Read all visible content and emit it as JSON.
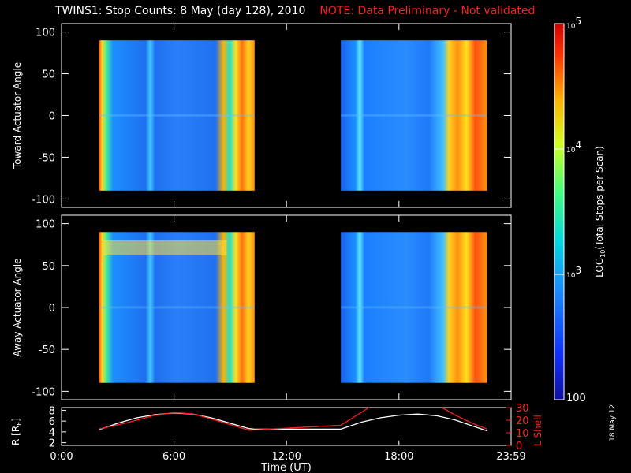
{
  "title": {
    "main": "TWINS1: Stop Counts:  8 May (day 128), 2010",
    "note": "NOTE: Data Preliminary - Not validated"
  },
  "date_stamp": "18 May 12",
  "colors": {
    "background": "#000000",
    "note": "#ff2020",
    "r_line": "#ffffff",
    "lshell_line": "#ff2020"
  },
  "chart_data": [
    {
      "type": "heatmap",
      "ylabel": "Toward Actuator Angle",
      "ylim": [
        -110,
        110
      ],
      "yticks": [
        -100,
        -50,
        0,
        50,
        100
      ],
      "x_segments_hours": [
        [
          2.0,
          10.3
        ],
        [
          14.9,
          22.7
        ]
      ]
    },
    {
      "type": "heatmap",
      "ylabel": "Away Actuator Angle",
      "ylim": [
        -110,
        110
      ],
      "yticks": [
        -100,
        -50,
        0,
        50,
        100
      ],
      "x_segments_hours": [
        [
          2.0,
          10.3
        ],
        [
          14.9,
          22.7
        ]
      ]
    },
    {
      "type": "line",
      "xlabel": "Time (UT)",
      "xticks": [
        "0:00",
        "6:00",
        "12:00",
        "18:00",
        "23:59"
      ],
      "xtick_hours": [
        0,
        6,
        12,
        18,
        23.983
      ],
      "xlim": [
        0,
        23.983
      ],
      "left_axis": {
        "label": "R [R",
        "label_sub": "E",
        "label_end": "]",
        "ylim": [
          1.5,
          8.5
        ],
        "yticks": [
          2,
          4,
          6,
          8
        ]
      },
      "right_axis": {
        "label": "L Shell",
        "ylim": [
          0,
          30
        ],
        "yticks": [
          0,
          10,
          20,
          30
        ]
      },
      "series": [
        {
          "axis": "left",
          "points": [
            [
              2.0,
              4.4
            ],
            [
              3.0,
              5.6
            ],
            [
              4.0,
              6.6
            ],
            [
              5.0,
              7.2
            ],
            [
              6.0,
              7.5
            ],
            [
              7.0,
              7.3
            ],
            [
              8.0,
              6.6
            ],
            [
              9.0,
              5.6
            ],
            [
              10.0,
              4.6
            ],
            [
              10.3,
              4.5
            ],
            [
              14.9,
              4.5
            ],
            [
              16.0,
              5.8
            ],
            [
              17.0,
              6.6
            ],
            [
              18.0,
              7.1
            ],
            [
              19.0,
              7.3
            ],
            [
              20.0,
              7.0
            ],
            [
              21.0,
              6.2
            ],
            [
              22.0,
              5.0
            ],
            [
              22.7,
              4.2
            ]
          ]
        },
        {
          "axis": "right",
          "points": [
            [
              2.0,
              13
            ],
            [
              3.5,
              18
            ],
            [
              5.0,
              24
            ],
            [
              6.0,
              26
            ],
            [
              7.0,
              25
            ],
            [
              8.0,
              21
            ],
            [
              10.0,
              12
            ],
            [
              14.9,
              16
            ],
            [
              16.4,
              30
            ]
          ]
        },
        {
          "axis": "right",
          "points": [
            [
              20.3,
              30
            ],
            [
              21.0,
              24
            ],
            [
              22.0,
              17
            ],
            [
              22.7,
              13
            ]
          ]
        }
      ]
    },
    {
      "type": "colorbar",
      "label": "LOG",
      "label_sub": "10",
      "label_rest": "(Total Stops per Scan)",
      "range": [
        100,
        100000
      ],
      "tick_labels": [
        {
          "base": "10",
          "exp": "5",
          "value": 100000
        },
        {
          "base": "10",
          "exp": "4",
          "value": 10000
        },
        {
          "base": "10",
          "exp": "3",
          "value": 1000
        },
        {
          "base": "100",
          "exp": "",
          "value": 100
        }
      ]
    }
  ]
}
